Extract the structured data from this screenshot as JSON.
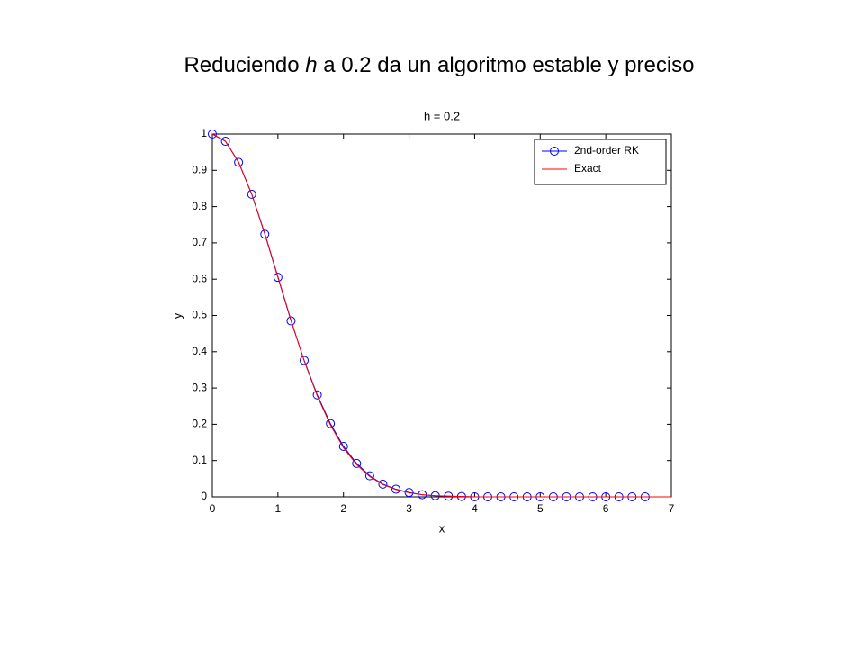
{
  "slide_title_parts": [
    "Reduciendo ",
    "h",
    " a 0.2 da un algoritmo estable y preciso"
  ],
  "chart_data": {
    "type": "line",
    "title": "h = 0.2",
    "xlabel": "x",
    "ylabel": "y",
    "xlim": [
      0,
      7
    ],
    "ylim": [
      0,
      1
    ],
    "xticks": [
      0,
      1,
      2,
      3,
      4,
      5,
      6,
      7
    ],
    "yticks": [
      0,
      0.1,
      0.2,
      0.3,
      0.4,
      0.5,
      0.6,
      0.7,
      0.8,
      0.9,
      1
    ],
    "grid": false,
    "legend": "upper right",
    "series": [
      {
        "name": "2nd-order RK",
        "color": "#0000ff",
        "marker": "circle",
        "x": [
          0,
          0.2,
          0.4,
          0.6,
          0.8,
          1,
          1.2,
          1.4,
          1.6,
          1.8,
          2,
          2.2,
          2.4,
          2.6,
          2.8,
          3,
          3.2,
          3.4,
          3.6,
          3.8,
          4,
          4.2,
          4.4,
          4.6,
          4.8,
          5,
          5.2,
          5.4,
          5.6,
          5.8,
          6,
          6.2,
          6.4,
          6.6
        ],
        "values": [
          1,
          0.98,
          0.922,
          0.834,
          0.724,
          0.605,
          0.485,
          0.376,
          0.281,
          0.202,
          0.139,
          0.092,
          0.058,
          0.035,
          0.021,
          0.012,
          0.006,
          0.003,
          0.002,
          0.001,
          0,
          0,
          0,
          0,
          0,
          0,
          0,
          0,
          0,
          0,
          0,
          0,
          0,
          0
        ]
      },
      {
        "name": "Exact",
        "color": "#ff0000",
        "x": [
          0,
          0.2,
          0.4,
          0.6,
          0.8,
          1,
          1.2,
          1.4,
          1.6,
          1.8,
          2,
          2.2,
          2.4,
          2.6,
          2.8,
          3,
          3.2,
          3.4,
          3.6,
          3.8,
          4,
          4.2,
          4.4,
          4.6,
          4.8,
          5,
          5.2,
          5.4,
          5.6,
          5.8,
          6,
          6.2,
          6.4,
          6.6,
          6.8,
          7
        ],
        "values": [
          1,
          0.98,
          0.923,
          0.835,
          0.726,
          0.607,
          0.487,
          0.375,
          0.278,
          0.198,
          0.135,
          0.089,
          0.056,
          0.034,
          0.02,
          0.011,
          0.006,
          0.003,
          0.002,
          0.001,
          0,
          0,
          0,
          0,
          0,
          0,
          0,
          0,
          0,
          0,
          0,
          0,
          0,
          0,
          0,
          0
        ]
      }
    ]
  }
}
